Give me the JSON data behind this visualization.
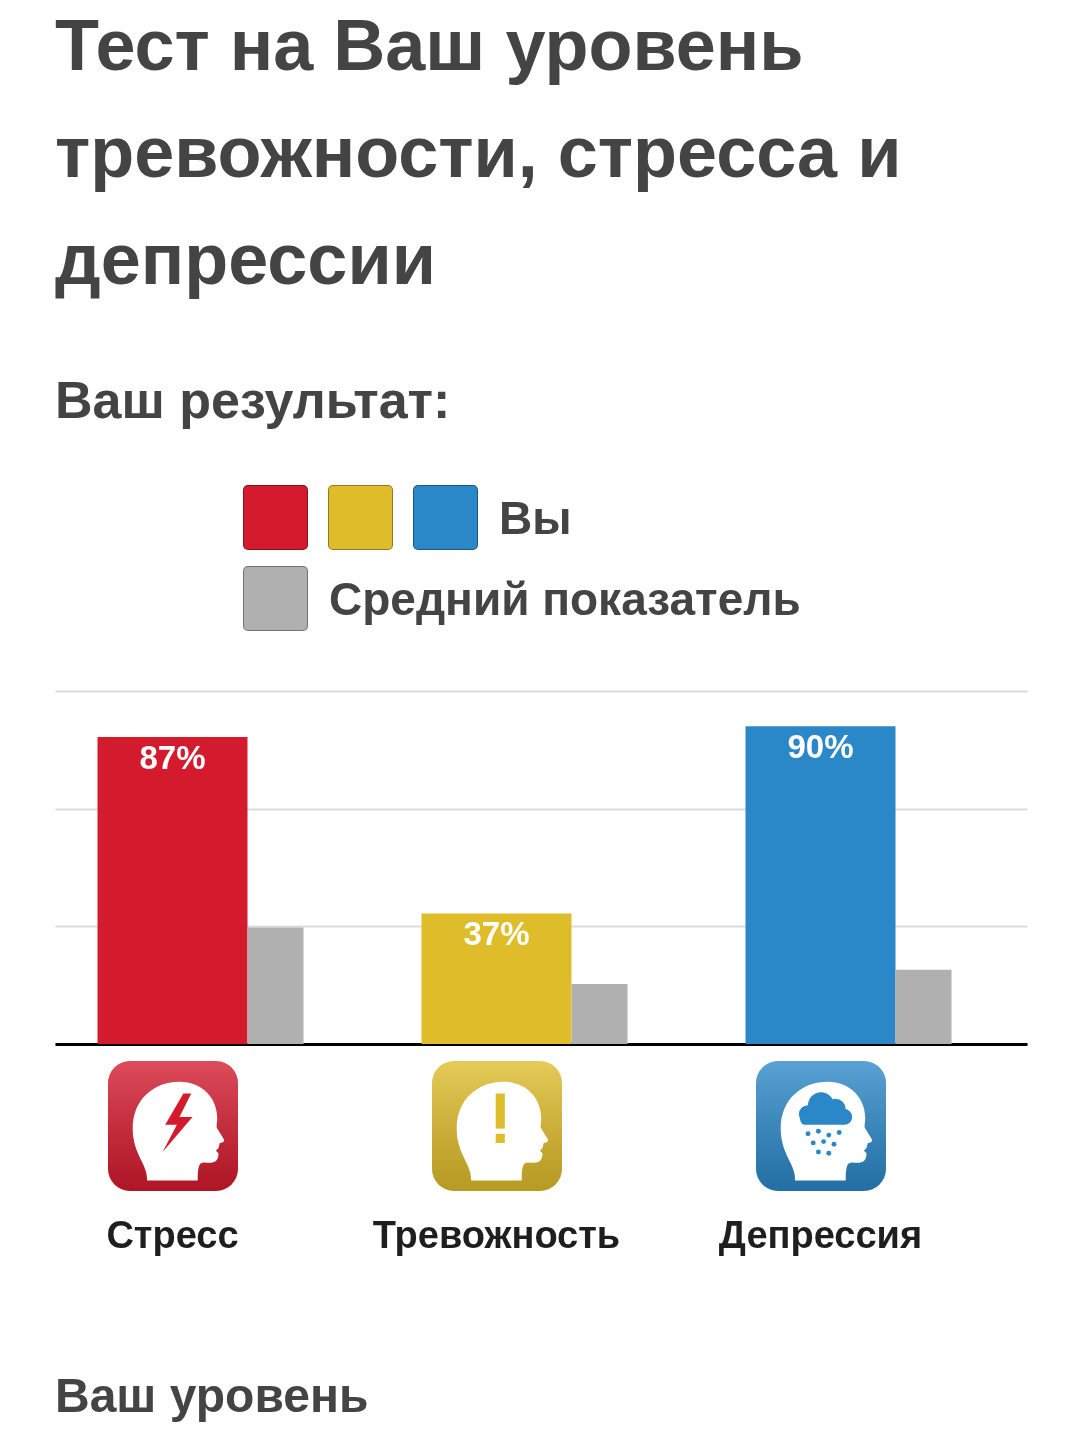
{
  "chart_data": {
    "type": "bar",
    "title": "Тест на Ваш уровень тревожности, стресса и депрессии",
    "subtitle": "Ваш результат:",
    "categories": [
      "Стресс",
      "Тревожность",
      "Депрессия"
    ],
    "series": [
      {
        "name": "Вы",
        "colors": [
          "#d41a2d",
          "#dfbc2a",
          "#2b88c8"
        ],
        "values": [
          87,
          37,
          90
        ],
        "value_labels": [
          "87%",
          "37%",
          "90%"
        ]
      },
      {
        "name": "Средний показатель",
        "color": "#b0b0b0",
        "values": [
          33,
          17,
          21
        ]
      }
    ],
    "ylim": [
      0,
      100
    ],
    "yticks": [
      {
        "value": 0,
        "label": null
      },
      {
        "value": 33.3,
        "label": null
      },
      {
        "value": 66.7,
        "label": null
      },
      {
        "value": 100,
        "label": null
      }
    ],
    "grid": "y",
    "legend": "top",
    "tick_labels": "x",
    "annotations": [
      "Ваш уровень"
    ]
  }
}
